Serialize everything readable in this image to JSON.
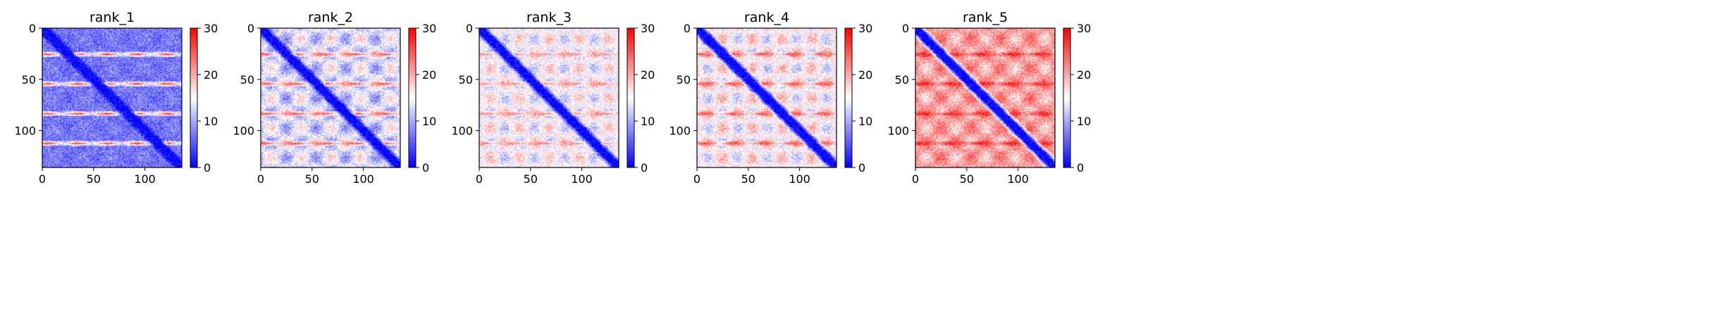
{
  "chart_data": [
    {
      "type": "heatmap",
      "title": "rank_1",
      "xlabel": "",
      "ylabel": "",
      "xlim": [
        0,
        136
      ],
      "ylim": [
        136,
        0
      ],
      "xticks": [
        0,
        50,
        100
      ],
      "yticks": [
        0,
        50,
        100
      ],
      "n": 136,
      "colorscale": {
        "min": 0,
        "max": 30,
        "ticks": [
          0,
          10,
          20,
          30
        ],
        "colormap": "bwr",
        "low_color": "#0000ff",
        "mid_color": "#ffffff",
        "high_color": "#ff0000"
      },
      "pattern": {
        "base": 6,
        "diag_value": 0,
        "diag_width": 4,
        "stripe_rows": [
          25,
          54,
          83,
          112
        ],
        "stripe_value": 26,
        "blob_value": 8,
        "blob_period": 29,
        "noise": 3
      }
    },
    {
      "type": "heatmap",
      "title": "rank_2",
      "xlabel": "",
      "ylabel": "",
      "xlim": [
        0,
        136
      ],
      "ylim": [
        136,
        0
      ],
      "xticks": [
        0,
        50,
        100
      ],
      "yticks": [
        0,
        50,
        100
      ],
      "n": 136,
      "colorscale": {
        "min": 0,
        "max": 30,
        "ticks": [
          0,
          10,
          20,
          30
        ],
        "colormap": "bwr",
        "low_color": "#0000ff",
        "mid_color": "#ffffff",
        "high_color": "#ff0000"
      },
      "pattern": {
        "base": 8,
        "diag_value": 0,
        "diag_width": 4,
        "stripe_rows": [
          25,
          54,
          83,
          112
        ],
        "stripe_value": 25,
        "blob_value": 18,
        "blob_period": 29,
        "noise": 3
      }
    },
    {
      "type": "heatmap",
      "title": "rank_3",
      "xlabel": "",
      "ylabel": "",
      "xlim": [
        0,
        136
      ],
      "ylim": [
        136,
        0
      ],
      "xticks": [
        0,
        50,
        100
      ],
      "yticks": [
        0,
        50,
        100
      ],
      "n": 136,
      "colorscale": {
        "min": 0,
        "max": 30,
        "ticks": [
          0,
          10,
          20,
          30
        ],
        "colormap": "bwr",
        "low_color": "#0000ff",
        "mid_color": "#ffffff",
        "high_color": "#ff0000"
      },
      "pattern": {
        "base": 11,
        "diag_value": 0,
        "diag_width": 4,
        "stripe_rows": [
          25,
          54,
          83,
          112
        ],
        "stripe_value": 22,
        "blob_value": 19,
        "blob_period": 29,
        "noise": 3
      }
    },
    {
      "type": "heatmap",
      "title": "rank_4",
      "xlabel": "",
      "ylabel": "",
      "xlim": [
        0,
        136
      ],
      "ylim": [
        136,
        0
      ],
      "xticks": [
        0,
        50,
        100
      ],
      "yticks": [
        0,
        50,
        100
      ],
      "n": 136,
      "colorscale": {
        "min": 0,
        "max": 30,
        "ticks": [
          0,
          10,
          20,
          30
        ],
        "colormap": "bwr",
        "low_color": "#0000ff",
        "mid_color": "#ffffff",
        "high_color": "#ff0000"
      },
      "pattern": {
        "base": 20,
        "diag_value": 0,
        "diag_width": 4,
        "stripe_rows": [
          25,
          54,
          83,
          112
        ],
        "stripe_value": 25,
        "blob_value": 11,
        "blob_period": 29,
        "noise": 3
      }
    },
    {
      "type": "heatmap",
      "title": "rank_5",
      "xlabel": "",
      "ylabel": "",
      "xlim": [
        0,
        136
      ],
      "ylim": [
        136,
        0
      ],
      "xticks": [
        0,
        50,
        100
      ],
      "yticks": [
        0,
        50,
        100
      ],
      "n": 136,
      "colorscale": {
        "min": 0,
        "max": 30,
        "ticks": [
          0,
          10,
          20,
          30
        ],
        "colormap": "bwr",
        "low_color": "#0000ff",
        "mid_color": "#ffffff",
        "high_color": "#ff0000"
      },
      "pattern": {
        "base": 24,
        "diag_value": 0,
        "diag_width": 4,
        "stripe_rows": [
          25,
          54,
          83,
          112
        ],
        "stripe_value": 28,
        "blob_value": 17,
        "blob_period": 29,
        "noise": 3
      }
    }
  ]
}
